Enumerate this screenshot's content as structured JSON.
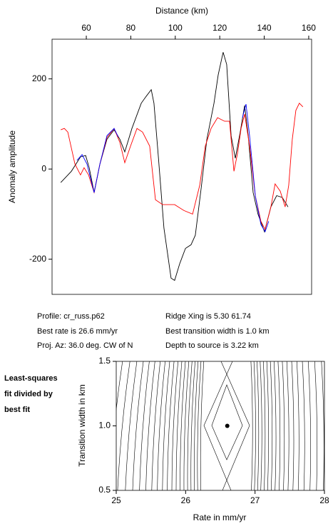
{
  "chart_data": [
    {
      "type": "line",
      "title": "Distance (km)",
      "y_label": "Anomaly amplitude",
      "xlim": [
        44.6,
        161.3
      ],
      "xticks": [
        60,
        80,
        100,
        120,
        140,
        160
      ],
      "ylim": [
        -278,
        288
      ],
      "yticks": [
        -200,
        0,
        200
      ],
      "grid": false,
      "series": [
        {
          "color": "#000000",
          "x": [
            48.5,
            53.3,
            57.4,
            59.7,
            61.3,
            63.5,
            66.1,
            69.3,
            72.5,
            75.1,
            77.3,
            80.5,
            84.7,
            86.9,
            89.2,
            90.4,
            92.4,
            94.9,
            98.1,
            99.7,
            102.0,
            104.6,
            107.1,
            109.0,
            111.6,
            114.2,
            117.4,
            119.3,
            121.5,
            123.1,
            125.1,
            127.0,
            129.2,
            131.2,
            132.8,
            135.0,
            137.2,
            140.1,
            143.0,
            145.6,
            148.1,
            150.7
          ],
          "values": [
            -30,
            -5,
            27,
            30,
            3,
            -52,
            11,
            66,
            87,
            66,
            38,
            90,
            146,
            161,
            176,
            146,
            27,
            -131,
            -242,
            -247,
            -210,
            -176,
            -168,
            -147,
            -44,
            66,
            146,
            209,
            259,
            232,
            74,
            24,
            82,
            141,
            74,
            -52,
            -100,
            -139,
            -84,
            -59,
            -63,
            -84
          ]
        },
        {
          "color": "#ff0000",
          "x": [
            48.5,
            50.1,
            51.7,
            54.9,
            57.4,
            59.0,
            61.0,
            63.5,
            66.1,
            69.3,
            72.5,
            75.1,
            77.3,
            79.9,
            82.8,
            85.3,
            88.5,
            91.1,
            94.3,
            99.7,
            103.9,
            107.8,
            111.0,
            113.5,
            116.1,
            119.0,
            122.2,
            124.4,
            126.4,
            128.0,
            129.6,
            131.2,
            133.4,
            136.0,
            138.5,
            140.4,
            143.0,
            144.9,
            147.2,
            149.4,
            151.0,
            152.6,
            154.2,
            155.8,
            157.4
          ],
          "values": [
            87,
            90,
            82,
            11,
            -13,
            3,
            -13,
            -52,
            11,
            70,
            90,
            59,
            14,
            51,
            90,
            82,
            51,
            -68,
            -79,
            -79,
            -92,
            -100,
            -36,
            51,
            90,
            114,
            106,
            106,
            -5,
            35,
            90,
            122,
            51,
            -60,
            -116,
            -134,
            -84,
            -33,
            -49,
            -84,
            -36,
            66,
            130,
            146,
            138
          ]
        },
        {
          "color": "#0000ff",
          "x": [
            55.8,
            58.1,
            60.3,
            63.5,
            66.1,
            69.3,
            72.5,
            74.4
          ],
          "values": [
            19,
            32,
            11,
            -52,
            11,
            74,
            90,
            71
          ]
        },
        {
          "color": "#0000ff",
          "x": [
            130.2,
            131.8,
            133.4,
            136.0,
            138.5,
            140.4,
            142.0
          ],
          "values": [
            114,
            144,
            74,
            -60,
            -123,
            -139,
            -116
          ]
        }
      ]
    },
    {
      "type": "scatter",
      "x_label": "Rate in mm/yr",
      "y_label": "Transition width in km",
      "xlim": [
        25,
        28
      ],
      "xticks": [
        25,
        26,
        27,
        28
      ],
      "ylim": [
        0.5,
        1.5
      ],
      "yticks": [
        0.5,
        {
          "value": 1,
          "label": "1.0"
        },
        1.5
      ],
      "grid": false,
      "series": [
        {
          "color": "#000000",
          "x": [
            26.6
          ],
          "values": [
            1.0
          ]
        }
      ]
    }
  ],
  "info": {
    "left": [
      "Profile: cr_russ.p62",
      "Best rate is 26.6 mm/yr",
      "Proj. Az: 36.0 deg. CW of N"
    ],
    "right": [
      "Ridge Xing is 5.30 61.74",
      "Best transition width is 1.0 km",
      "Depth to source is   3.22 km"
    ]
  },
  "side_label": [
    "Least-squares",
    "fit divided by",
    "best fit"
  ]
}
